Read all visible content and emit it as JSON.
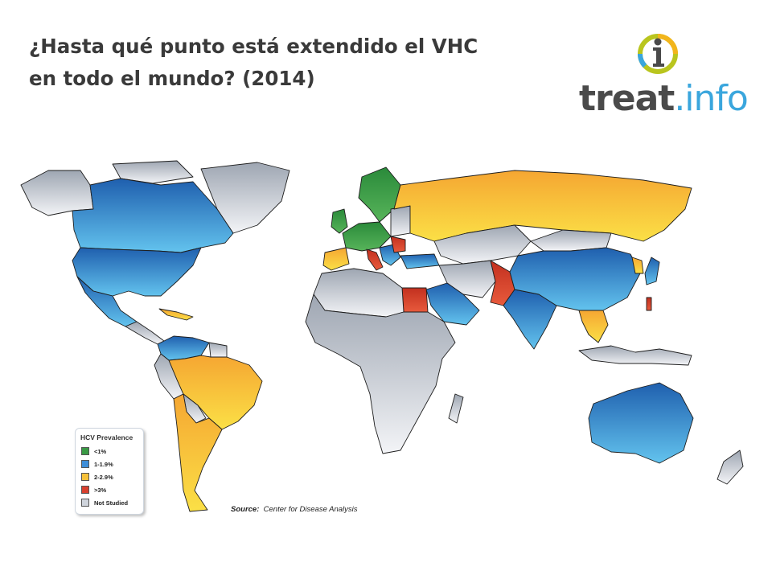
{
  "title_line1": "¿Hasta qué punto está extendido el VHC",
  "title_line2": "en todo el mundo? (2014)",
  "logo": {
    "icon": "info-i-icon",
    "word_bold": "treat",
    "word_light": ".info"
  },
  "legend": {
    "title": "HCV Prevalence",
    "items": [
      {
        "label": "<1%",
        "color": "#3a9a45"
      },
      {
        "label": "1-1.9%",
        "color": "#3e8ed8"
      },
      {
        "label": "2-2.9%",
        "color": "#f6c13a"
      },
      {
        "label": ">3%",
        "color": "#d8402e"
      },
      {
        "label": "Not Studied",
        "color": "#cfd4dc"
      }
    ]
  },
  "source": {
    "label": "Source:",
    "text": "Center for Disease Analysis"
  }
}
